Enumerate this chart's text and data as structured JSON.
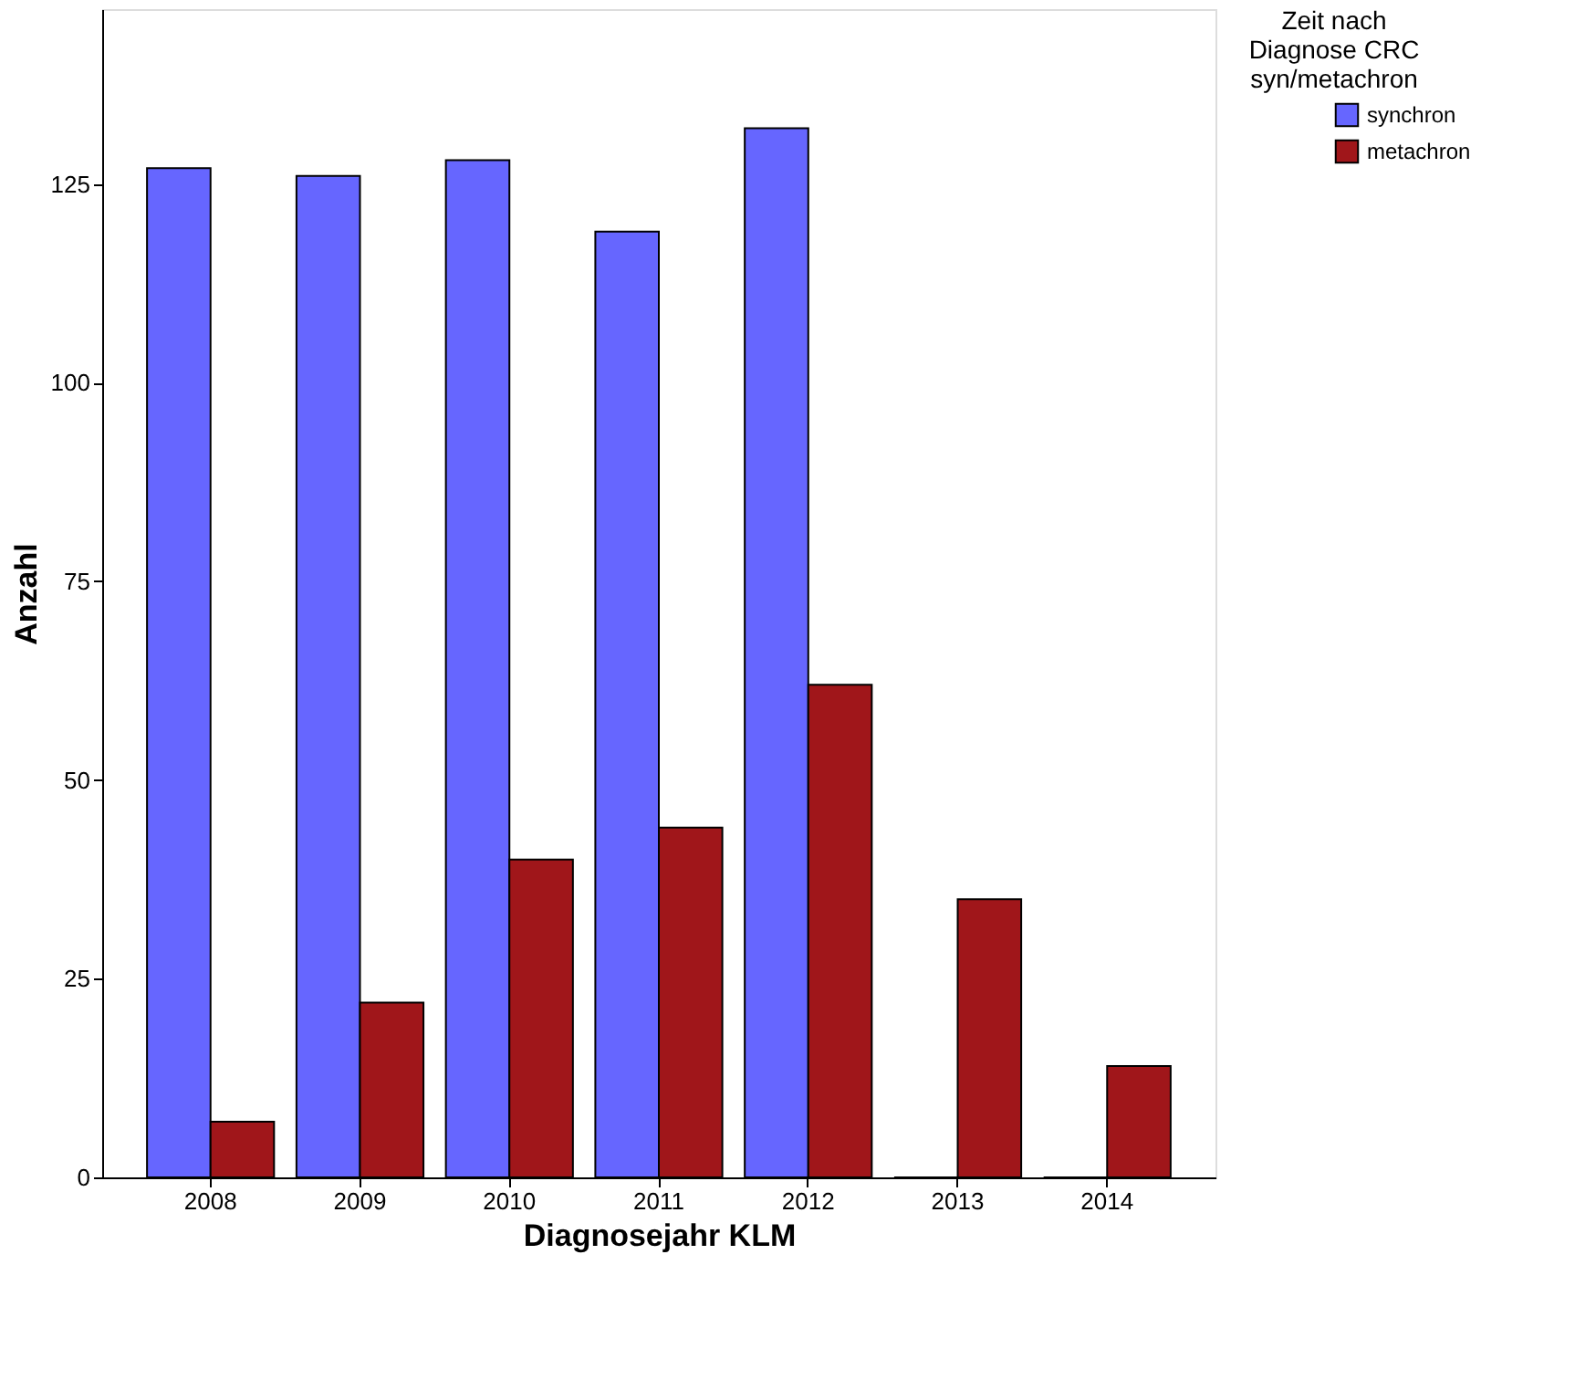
{
  "chart_data": {
    "type": "bar",
    "xlabel": "Diagnosejahr KLM",
    "ylabel": "Anzahl",
    "legend_title": "Zeit nach\nDiagnose CRC\nsyn/metachron",
    "categories": [
      "2008",
      "2009",
      "2010",
      "2011",
      "2012",
      "2013",
      "2014"
    ],
    "series": [
      {
        "name": "synchron",
        "color": "#6666ff",
        "values": [
          127,
          126,
          128,
          119,
          132,
          0,
          0
        ]
      },
      {
        "name": "metachron",
        "color": "#a0161a",
        "values": [
          7,
          22,
          40,
          44,
          62,
          35,
          14
        ]
      }
    ],
    "ylim": [
      0,
      147
    ],
    "yticks": [
      0,
      25,
      50,
      75,
      100,
      125
    ],
    "grid": false,
    "legend": "top right"
  }
}
